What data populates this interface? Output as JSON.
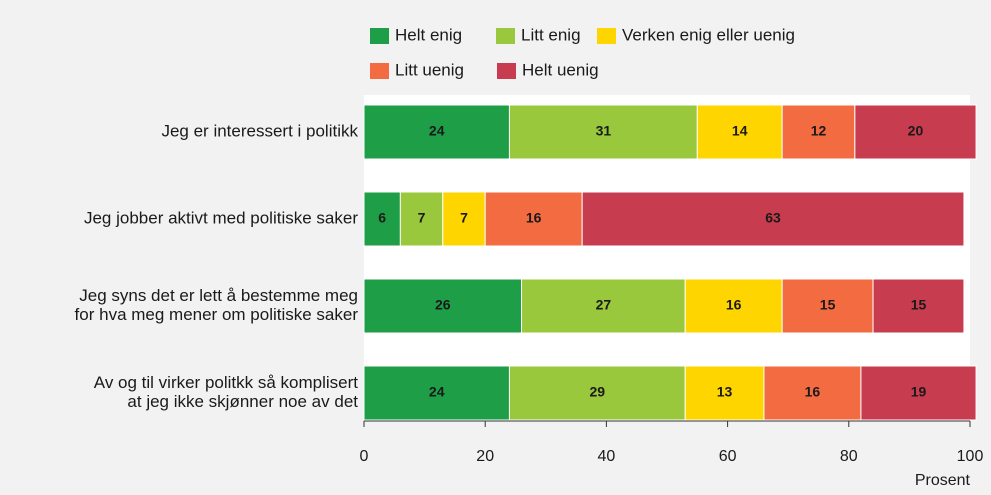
{
  "chart_data": {
    "type": "stacked-barh",
    "categories": [
      [
        "Jeg er interessert i politikk"
      ],
      [
        "Jeg jobber aktivt med politiske saker"
      ],
      [
        "Jeg syns det er lett å bestemme meg",
        "for hva meg mener om politiske saker"
      ],
      [
        "Av og til virker politkk så komplisert",
        "at jeg ikke skjønner noe av det"
      ]
    ],
    "series": [
      {
        "name": "Helt enig",
        "color": "#1f9e48",
        "values": [
          24,
          6,
          26,
          24
        ]
      },
      {
        "name": "Litt enig",
        "color": "#9ac83c",
        "values": [
          31,
          7,
          27,
          29
        ]
      },
      {
        "name": "Verken enig eller uenig",
        "color": "#ffd500",
        "values": [
          14,
          7,
          16,
          13
        ]
      },
      {
        "name": "Litt uenig",
        "color": "#f26b41",
        "values": [
          12,
          16,
          15,
          16
        ]
      },
      {
        "name": "Helt uenig",
        "color": "#c83c50",
        "values": [
          20,
          63,
          15,
          19
        ]
      }
    ],
    "xlabel": "Prosent",
    "xlim": [
      0,
      100
    ],
    "xticks": [
      0,
      20,
      40,
      60,
      80,
      100
    ]
  }
}
